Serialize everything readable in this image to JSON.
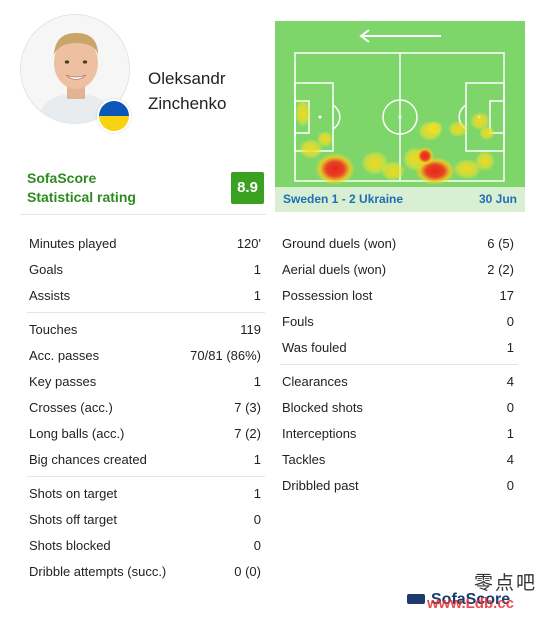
{
  "player": {
    "name_line1": "Oleksandr",
    "name_line2": "Zinchenko",
    "flag_icon": "ukraine-flag-icon"
  },
  "rating": {
    "label_line1": "SofaScore",
    "label_line2": "Statistical rating",
    "value": "8.9",
    "badge_color": "#3aa121"
  },
  "heatmap": {
    "match": "Sweden 1 - 2 Ukraine",
    "date": "30 Jun",
    "direction_icon": "arrow-left-icon",
    "field_color": "#7ed56a"
  },
  "stats_left": [
    [
      {
        "label": "Minutes played",
        "value": "120'"
      },
      {
        "label": "Goals",
        "value": "1"
      },
      {
        "label": "Assists",
        "value": "1"
      }
    ],
    [
      {
        "label": "Touches",
        "value": "119"
      },
      {
        "label": "Acc. passes",
        "value": "70/81 (86%)"
      },
      {
        "label": "Key passes",
        "value": "1"
      },
      {
        "label": "Crosses (acc.)",
        "value": "7 (3)"
      },
      {
        "label": "Long balls (acc.)",
        "value": "7 (2)"
      },
      {
        "label": "Big chances created",
        "value": "1"
      }
    ],
    [
      {
        "label": "Shots on target",
        "value": "1"
      },
      {
        "label": "Shots off target",
        "value": "0"
      },
      {
        "label": "Shots blocked",
        "value": "0"
      },
      {
        "label": "Dribble attempts (succ.)",
        "value": "0 (0)"
      }
    ]
  ],
  "stats_right": [
    [
      {
        "label": "Ground duels (won)",
        "value": "6 (5)"
      },
      {
        "label": "Aerial duels (won)",
        "value": "2 (2)"
      },
      {
        "label": "Possession lost",
        "value": "17"
      },
      {
        "label": "Fouls",
        "value": "0"
      },
      {
        "label": "Was fouled",
        "value": "1"
      }
    ],
    [
      {
        "label": "Clearances",
        "value": "4"
      },
      {
        "label": "Blocked shots",
        "value": "0"
      },
      {
        "label": "Interceptions",
        "value": "1"
      },
      {
        "label": "Tackles",
        "value": "4"
      },
      {
        "label": "Dribbled past",
        "value": "0"
      }
    ]
  ],
  "watermark": {
    "cn": "零点吧",
    "logo": "SofaScore",
    "url": "www.Ldb.cc"
  }
}
